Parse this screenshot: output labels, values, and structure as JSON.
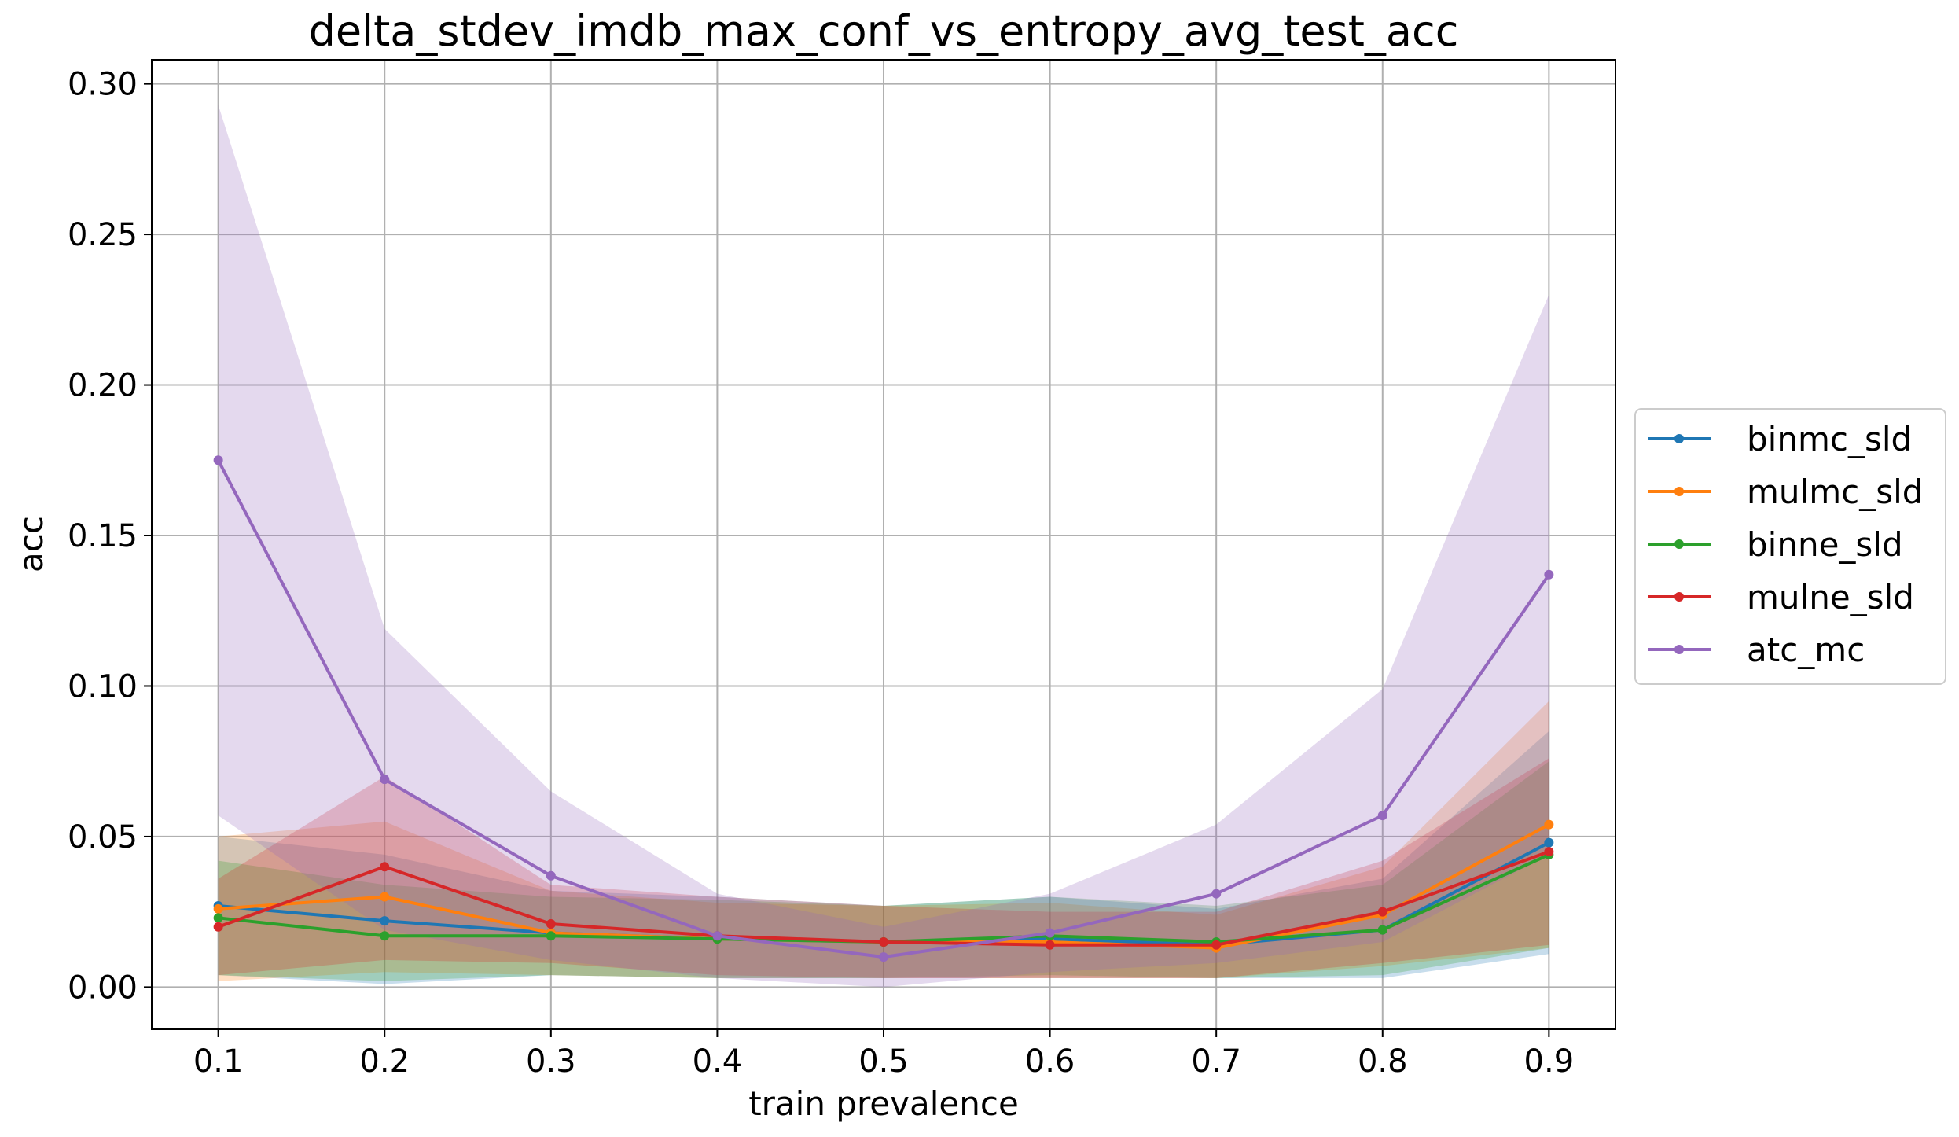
{
  "chart_data": {
    "type": "line",
    "title": "delta_stdev_imdb_max_conf_vs_entropy_avg_test_acc",
    "xlabel": "train prevalence",
    "ylabel": "acc",
    "xlim": [
      0.06,
      0.94
    ],
    "ylim": [
      -0.014,
      0.308
    ],
    "x": [
      0.1,
      0.2,
      0.3,
      0.4,
      0.5,
      0.6,
      0.7,
      0.8,
      0.9
    ],
    "x_tick_labels": [
      "0.1",
      "0.2",
      "0.3",
      "0.4",
      "0.5",
      "0.6",
      "0.7",
      "0.8",
      "0.9"
    ],
    "y_ticks": [
      0.0,
      0.05,
      0.1,
      0.15,
      0.2,
      0.25,
      0.3
    ],
    "y_tick_labels": [
      "0.00",
      "0.05",
      "0.10",
      "0.15",
      "0.20",
      "0.25",
      "0.30"
    ],
    "grid": true,
    "legend_position": "center-right (outside)",
    "series": [
      {
        "name": "binmc_sld",
        "color": "#1f77b4",
        "values": [
          0.027,
          0.022,
          0.018,
          0.016,
          0.015,
          0.016,
          0.014,
          0.019,
          0.048
        ],
        "band_upper": [
          0.05,
          0.044,
          0.032,
          0.03,
          0.027,
          0.03,
          0.026,
          0.036,
          0.085
        ],
        "band_lower": [
          0.004,
          0.001,
          0.004,
          0.003,
          0.003,
          0.003,
          0.003,
          0.003,
          0.011
        ]
      },
      {
        "name": "mulmc_sld",
        "color": "#ff7f0e",
        "values": [
          0.026,
          0.03,
          0.018,
          0.016,
          0.015,
          0.015,
          0.013,
          0.024,
          0.054
        ],
        "band_upper": [
          0.05,
          0.055,
          0.032,
          0.028,
          0.027,
          0.028,
          0.024,
          0.04,
          0.095
        ],
        "band_lower": [
          0.002,
          0.005,
          0.004,
          0.003,
          0.003,
          0.003,
          0.003,
          0.007,
          0.013
        ]
      },
      {
        "name": "binne_sld",
        "color": "#2ca02c",
        "values": [
          0.023,
          0.017,
          0.017,
          0.016,
          0.015,
          0.017,
          0.015,
          0.019,
          0.044
        ],
        "band_upper": [
          0.042,
          0.034,
          0.03,
          0.029,
          0.027,
          0.03,
          0.027,
          0.034,
          0.075
        ],
        "band_lower": [
          0.004,
          0.002,
          0.004,
          0.003,
          0.003,
          0.004,
          0.003,
          0.004,
          0.013
        ]
      },
      {
        "name": "mulne_sld",
        "color": "#d62728",
        "values": [
          0.02,
          0.04,
          0.021,
          0.017,
          0.015,
          0.014,
          0.014,
          0.025,
          0.045
        ],
        "band_upper": [
          0.036,
          0.07,
          0.034,
          0.03,
          0.027,
          0.025,
          0.025,
          0.042,
          0.076
        ],
        "band_lower": [
          0.004,
          0.009,
          0.008,
          0.004,
          0.003,
          0.003,
          0.003,
          0.008,
          0.014
        ]
      },
      {
        "name": "atc_mc",
        "color": "#9467bd",
        "values": [
          0.175,
          0.069,
          0.037,
          0.017,
          0.01,
          0.018,
          0.031,
          0.057,
          0.137
        ],
        "band_upper": [
          0.293,
          0.119,
          0.065,
          0.031,
          0.02,
          0.031,
          0.054,
          0.099,
          0.23
        ],
        "band_lower": [
          0.057,
          0.019,
          0.009,
          0.003,
          0.0,
          0.005,
          0.008,
          0.015,
          0.044
        ]
      }
    ]
  }
}
